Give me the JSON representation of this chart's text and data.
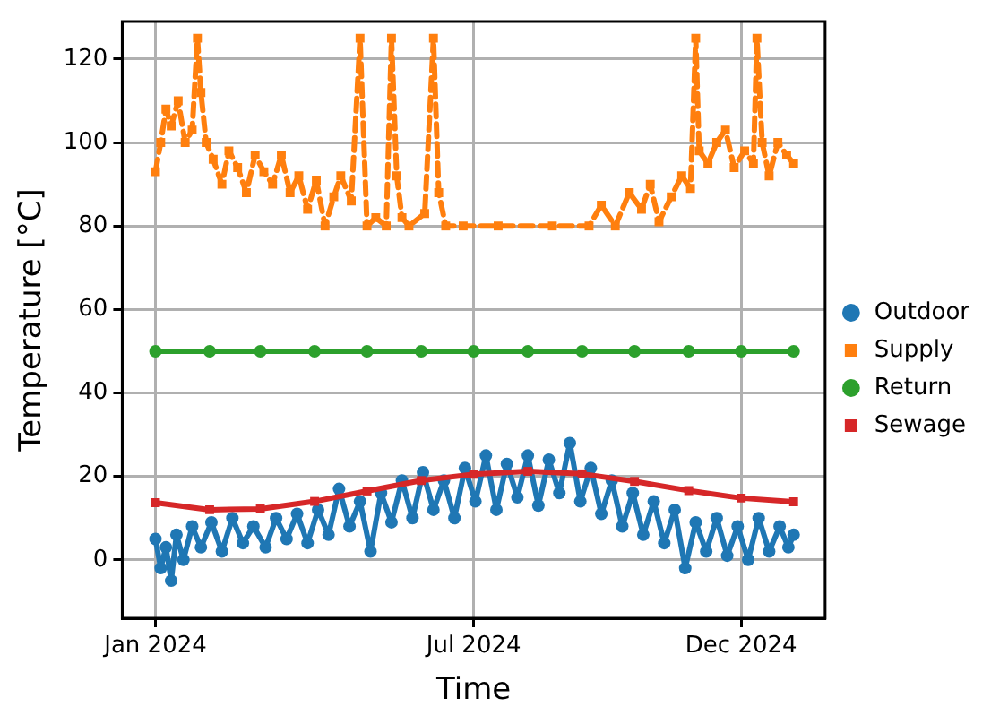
{
  "chart_data": {
    "type": "line",
    "xlabel": "Time",
    "ylabel": "Temperature [°C]",
    "xlim": [
      "2023-12-13",
      "2025-01-18"
    ],
    "ylim": [
      -14,
      129
    ],
    "xticks": [
      {
        "value": "2024-01-01",
        "label": "Jan 2024"
      },
      {
        "value": "2024-07-01",
        "label": "Jul 2024"
      },
      {
        "value": "2024-12-01",
        "label": "Dec 2024"
      }
    ],
    "yticks": [
      0,
      20,
      40,
      60,
      80,
      100,
      120
    ],
    "grid": true,
    "legend": "right",
    "line_style": "solid",
    "series": [
      {
        "name": "Outdoor",
        "color": "#1f77b4",
        "marker": "circle",
        "x": [
          "2024-01-01",
          "2024-01-04",
          "2024-01-07",
          "2024-01-10",
          "2024-01-13",
          "2024-01-17",
          "2024-01-22",
          "2024-01-27",
          "2024-02-02",
          "2024-02-08",
          "2024-02-14",
          "2024-02-20",
          "2024-02-26",
          "2024-03-04",
          "2024-03-10",
          "2024-03-16",
          "2024-03-22",
          "2024-03-28",
          "2024-04-03",
          "2024-04-09",
          "2024-04-15",
          "2024-04-21",
          "2024-04-27",
          "2024-05-03",
          "2024-05-09",
          "2024-05-15",
          "2024-05-21",
          "2024-05-27",
          "2024-06-02",
          "2024-06-08",
          "2024-06-14",
          "2024-06-20",
          "2024-06-26",
          "2024-07-02",
          "2024-07-08",
          "2024-07-14",
          "2024-07-20",
          "2024-07-26",
          "2024-08-01",
          "2024-08-07",
          "2024-08-13",
          "2024-08-19",
          "2024-08-25",
          "2024-08-31",
          "2024-09-06",
          "2024-09-12",
          "2024-09-18",
          "2024-09-24",
          "2024-09-30",
          "2024-10-06",
          "2024-10-12",
          "2024-10-18",
          "2024-10-24",
          "2024-10-30",
          "2024-11-05",
          "2024-11-11",
          "2024-11-17",
          "2024-11-23",
          "2024-11-29",
          "2024-12-05",
          "2024-12-11",
          "2024-12-17",
          "2024-12-23",
          "2024-12-28",
          "2024-12-31"
        ],
        "values": [
          5,
          -2,
          3,
          -5,
          6,
          0,
          8,
          3,
          9,
          2,
          10,
          4,
          8,
          3,
          10,
          5,
          11,
          4,
          12,
          6,
          17,
          8,
          14,
          2,
          16,
          9,
          19,
          10,
          21,
          12,
          19,
          10,
          22,
          14,
          25,
          12,
          23,
          15,
          25,
          13,
          24,
          16,
          28,
          14,
          22,
          11,
          19,
          8,
          16,
          6,
          14,
          4,
          12,
          -2,
          9,
          2,
          10,
          1,
          8,
          0,
          10,
          2,
          8,
          3,
          6
        ]
      },
      {
        "name": "Supply",
        "color": "#ff7f0e",
        "marker": "square",
        "line_style": "dashed",
        "x": [
          "2024-01-01",
          "2024-01-04",
          "2024-01-07",
          "2024-01-10",
          "2024-01-14",
          "2024-01-18",
          "2024-01-22",
          "2024-01-25",
          "2024-01-27",
          "2024-01-30",
          "2024-02-03",
          "2024-02-08",
          "2024-02-12",
          "2024-02-17",
          "2024-02-22",
          "2024-02-27",
          "2024-03-03",
          "2024-03-08",
          "2024-03-13",
          "2024-03-18",
          "2024-03-23",
          "2024-03-28",
          "2024-04-02",
          "2024-04-07",
          "2024-04-12",
          "2024-04-16",
          "2024-04-22",
          "2024-04-27",
          "2024-05-01",
          "2024-05-06",
          "2024-05-12",
          "2024-05-15",
          "2024-05-18",
          "2024-05-21",
          "2024-05-25",
          "2024-06-03",
          "2024-06-08",
          "2024-06-11",
          "2024-06-15",
          "2024-06-25",
          "2024-07-15",
          "2024-08-15",
          "2024-09-05",
          "2024-09-12",
          "2024-09-20",
          "2024-09-28",
          "2024-10-05",
          "2024-10-10",
          "2024-10-15",
          "2024-10-22",
          "2024-10-28",
          "2024-11-02",
          "2024-11-05",
          "2024-11-07",
          "2024-11-12",
          "2024-11-17",
          "2024-11-22",
          "2024-11-27",
          "2024-12-03",
          "2024-12-08",
          "2024-12-10",
          "2024-12-13",
          "2024-12-17",
          "2024-12-22",
          "2024-12-27",
          "2024-12-31"
        ],
        "values": [
          93,
          100,
          108,
          104,
          110,
          100,
          103,
          125,
          112,
          100,
          96,
          90,
          98,
          94,
          88,
          97,
          93,
          90,
          97,
          88,
          92,
          84,
          91,
          80,
          87,
          92,
          86,
          125,
          80,
          82,
          80,
          125,
          92,
          82,
          80,
          83,
          125,
          88,
          80,
          80,
          80,
          80,
          80,
          85,
          80,
          88,
          84,
          90,
          81,
          87,
          92,
          89,
          125,
          98,
          95,
          100,
          103,
          94,
          98,
          95,
          125,
          100,
          92,
          100,
          97,
          95
        ]
      },
      {
        "name": "Return",
        "color": "#2ca02c",
        "marker": "circle",
        "x": [
          "2024-01-01",
          "2024-02-01",
          "2024-03-01",
          "2024-04-01",
          "2024-05-01",
          "2024-06-01",
          "2024-07-01",
          "2024-08-01",
          "2024-09-01",
          "2024-10-01",
          "2024-11-01",
          "2024-12-01",
          "2024-12-31"
        ],
        "values": [
          50,
          50,
          50,
          50,
          50,
          50,
          50,
          50,
          50,
          50,
          50,
          50,
          50
        ]
      },
      {
        "name": "Sewage",
        "color": "#d62728",
        "marker": "square",
        "x": [
          "2024-01-01",
          "2024-02-01",
          "2024-03-01",
          "2024-04-01",
          "2024-05-01",
          "2024-06-01",
          "2024-07-01",
          "2024-08-01",
          "2024-09-01",
          "2024-10-01",
          "2024-11-01",
          "2024-12-01",
          "2024-12-31"
        ],
        "values": [
          13.7,
          12,
          12.2,
          14,
          16.5,
          19,
          20.5,
          21.2,
          20.6,
          18.8,
          16.6,
          14.8,
          13.9
        ]
      }
    ]
  }
}
